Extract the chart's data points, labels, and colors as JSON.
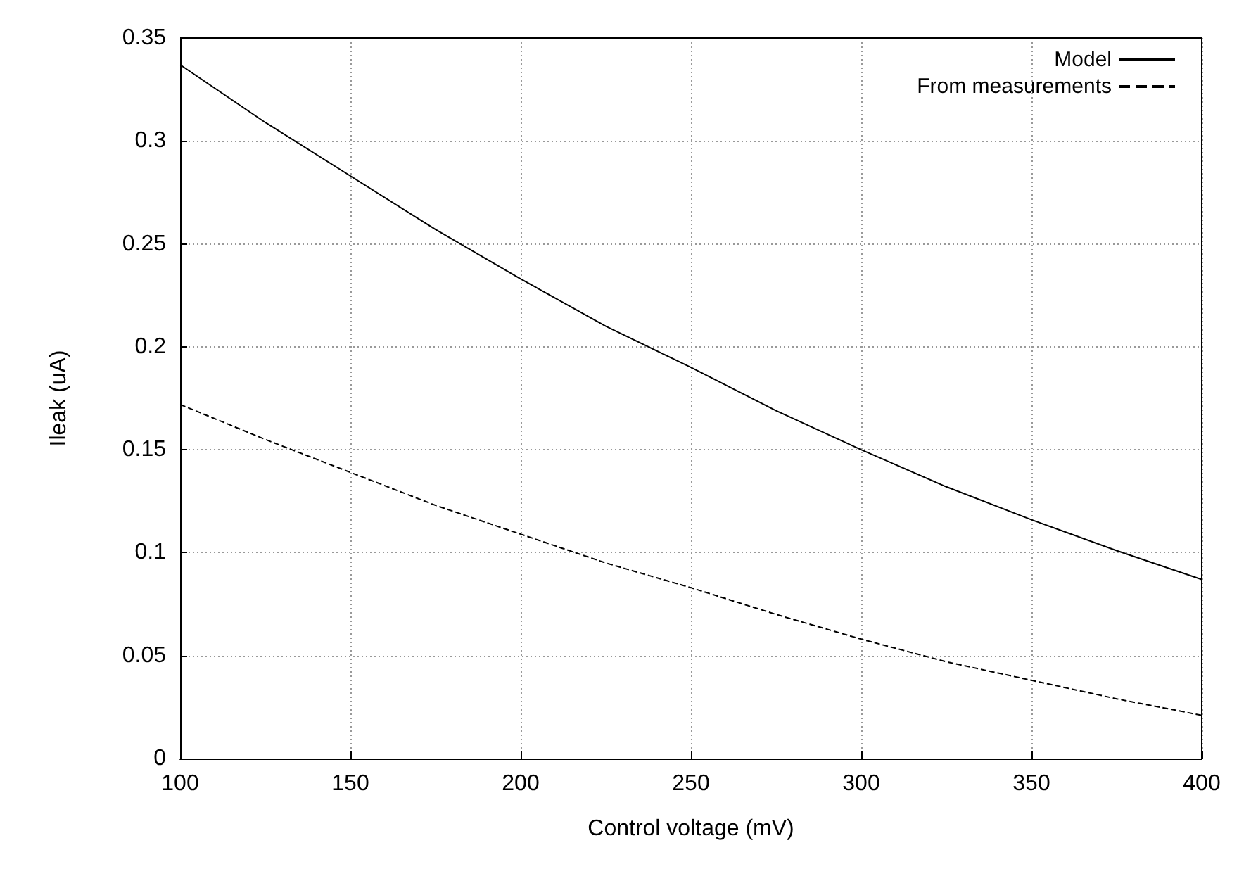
{
  "chart_data": {
    "type": "line",
    "xlabel": "Control voltage (mV)",
    "ylabel": "Ileak (uA)",
    "x": [
      100,
      125,
      150,
      175,
      200,
      225,
      250,
      275,
      300,
      325,
      350,
      375,
      400
    ],
    "series": [
      {
        "name": "Model",
        "color": "#000000",
        "line_style": "solid",
        "values": [
          0.337,
          0.309,
          0.283,
          0.257,
          0.233,
          0.21,
          0.19,
          0.169,
          0.15,
          0.132,
          0.116,
          0.101,
          0.087
        ]
      },
      {
        "name": "From measurements",
        "color": "#000000",
        "line_style": "dashed",
        "values": [
          0.172,
          0.155,
          0.139,
          0.123,
          0.109,
          0.095,
          0.083,
          0.07,
          0.058,
          0.047,
          0.038,
          0.029,
          0.021
        ]
      }
    ],
    "xlim": [
      100,
      400
    ],
    "xticks": [
      100,
      150,
      200,
      250,
      300,
      350,
      400
    ],
    "ylim": [
      0,
      0.35
    ],
    "yticks": [
      0,
      0.05,
      0.1,
      0.15,
      0.2,
      0.25,
      0.3,
      0.35
    ],
    "grid": true,
    "legend": "top right",
    "marker": "none"
  }
}
